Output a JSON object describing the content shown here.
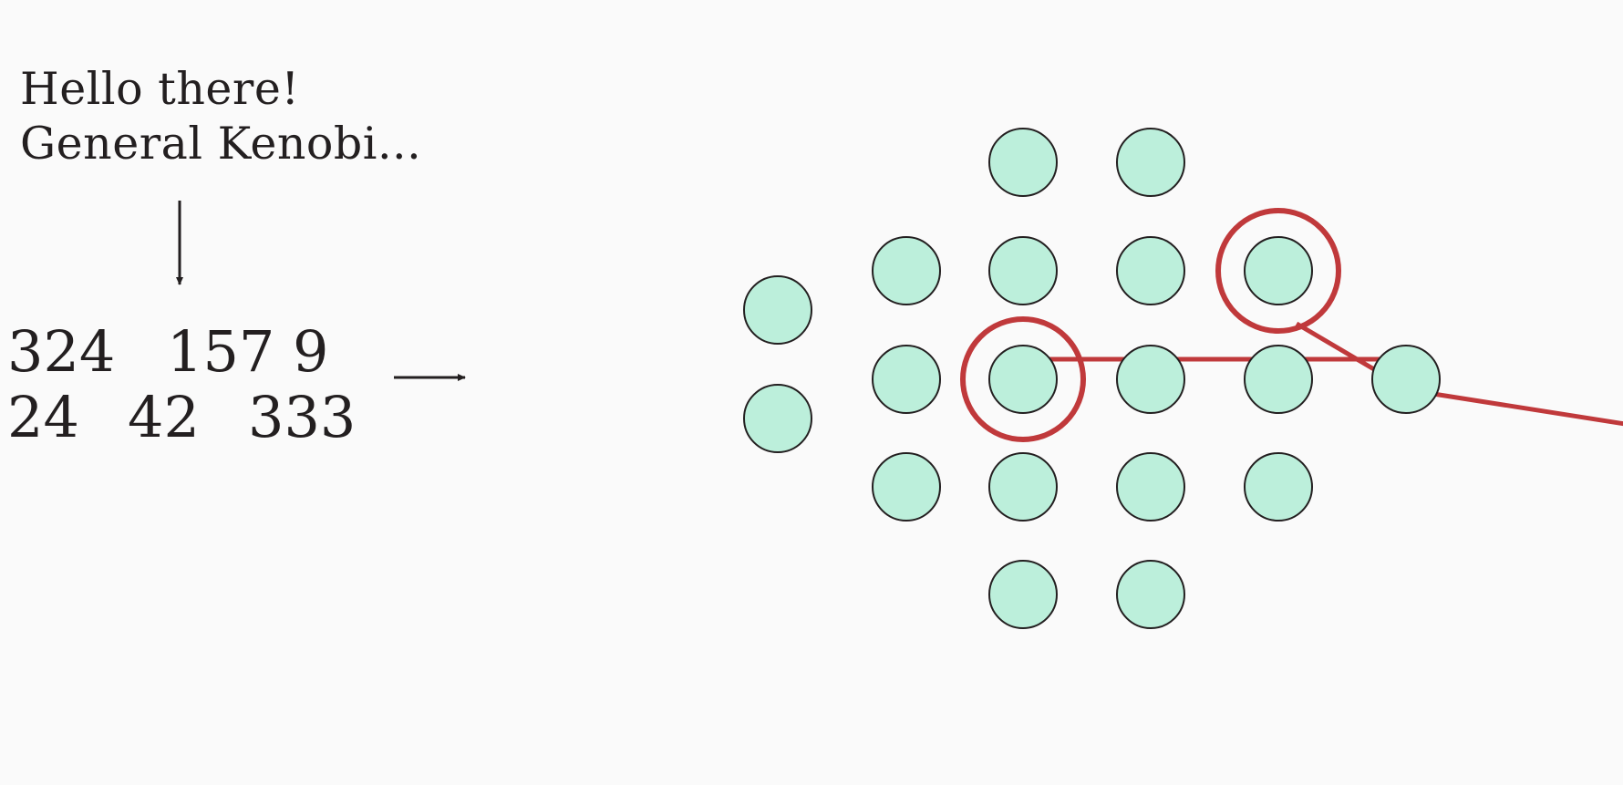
{
  "input_text": {
    "line1": "Hello there!",
    "line2": "General Kenobi..."
  },
  "token_rows": [
    [
      "324",
      "157 9"
    ],
    [
      "24",
      "42",
      "333"
    ]
  ],
  "colors": {
    "background": "#fafafa",
    "node_fill": "#bcefdb",
    "node_stroke": "#231f20",
    "highlight": "#c0393b",
    "text": "#231f20",
    "arrow": "#231f20"
  },
  "nodes": [
    {
      "id": "r0c2",
      "highlighted": false
    },
    {
      "id": "r0c3",
      "highlighted": false
    },
    {
      "id": "r1c1",
      "highlighted": false
    },
    {
      "id": "r1c2",
      "highlighted": false
    },
    {
      "id": "r1c3",
      "highlighted": false
    },
    {
      "id": "r1c4",
      "highlighted": true
    },
    {
      "id": "r1c0",
      "highlighted": false
    },
    {
      "id": "r2c0",
      "highlighted": false
    },
    {
      "id": "r2c1",
      "highlighted": false
    },
    {
      "id": "r2c2",
      "highlighted": true
    },
    {
      "id": "r2c3",
      "highlighted": false
    },
    {
      "id": "r2c4",
      "highlighted": false
    },
    {
      "id": "r2c5",
      "highlighted": false
    },
    {
      "id": "r3c1",
      "highlighted": false
    },
    {
      "id": "r3c2",
      "highlighted": false
    },
    {
      "id": "r3c3",
      "highlighted": false
    },
    {
      "id": "r3c4",
      "highlighted": false
    },
    {
      "id": "r4c2",
      "highlighted": false
    },
    {
      "id": "r4c3",
      "highlighted": false
    }
  ],
  "path": [
    "r2c2",
    "r2c3",
    "r2c4",
    "r2c5",
    "offscreen-right"
  ],
  "branch": [
    "r1c4",
    "r2c5"
  ]
}
